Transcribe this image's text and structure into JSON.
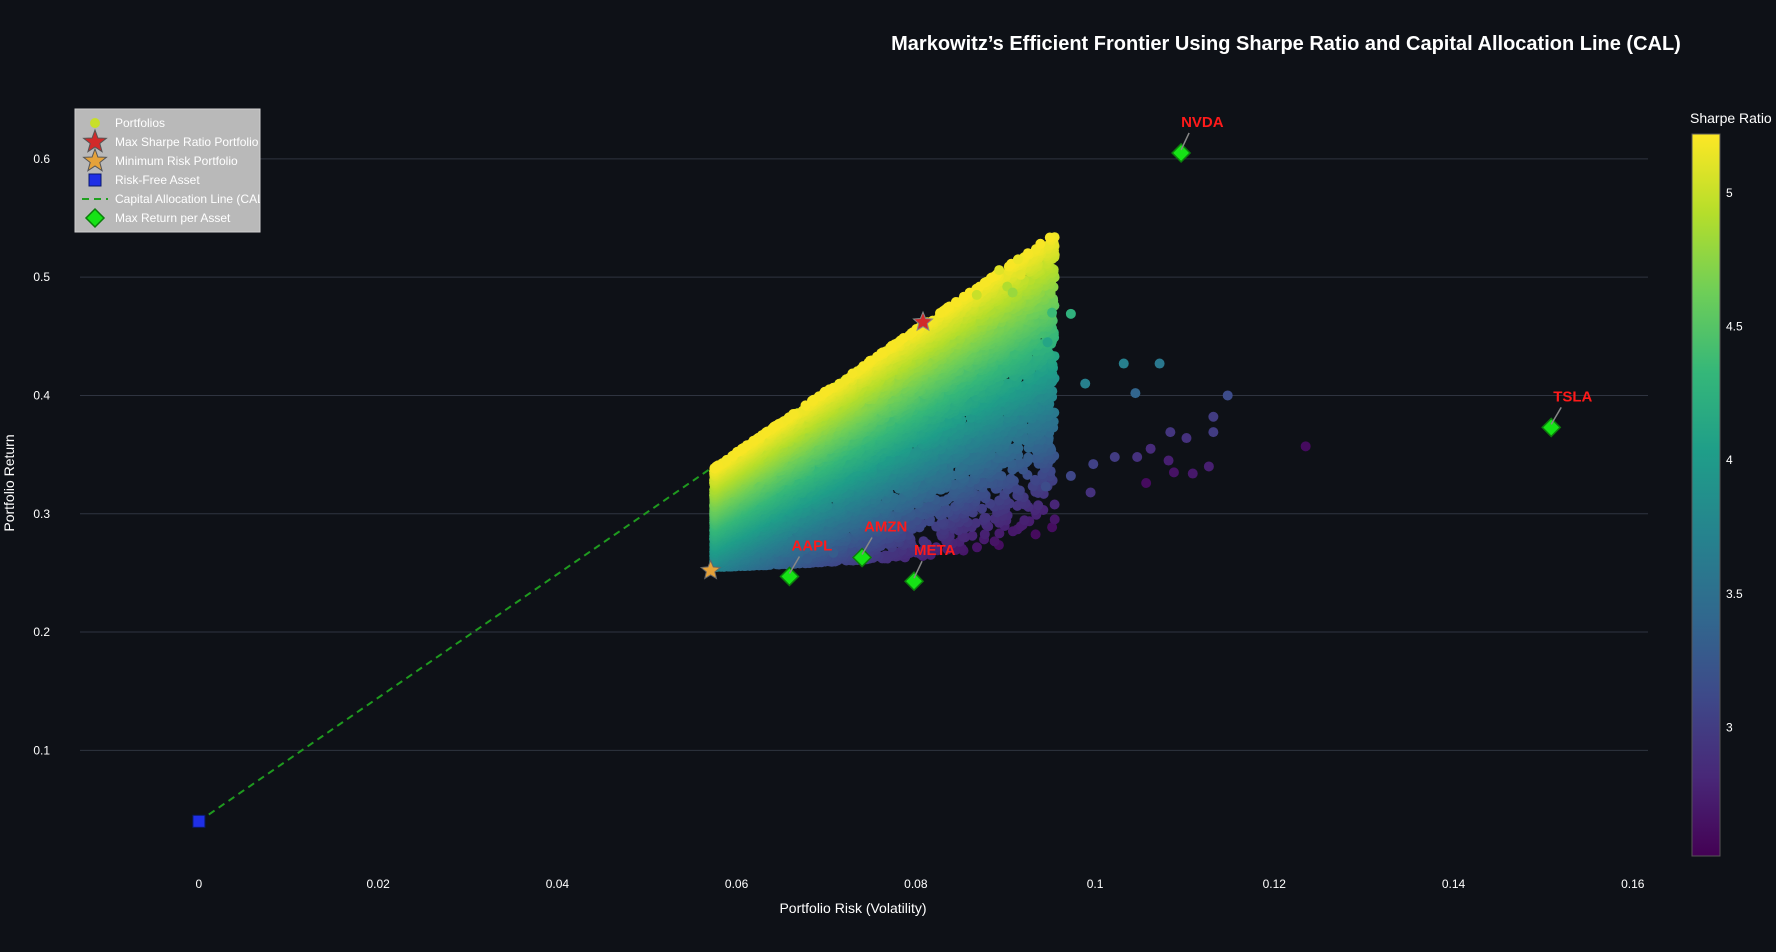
{
  "chart_data": {
    "type": "scatter",
    "title": "Markowitz’s Efficient Frontier Using Sharpe Ratio and Capital Allocation Line (CAL)",
    "xlabel": "Portfolio Risk (Volatility)",
    "ylabel": "Portfolio Return",
    "xlim": [
      -0.0155,
      0.1617
    ],
    "ylim": [
      0.009,
      0.654
    ],
    "x_ticks": [
      0,
      0.02,
      0.04,
      0.06,
      0.08,
      0.1,
      0.12,
      0.14,
      0.16
    ],
    "x_tick_labels": [
      "0",
      "0.02",
      "0.04",
      "0.06",
      "0.08",
      "0.1",
      "0.12",
      "0.14",
      "0.16"
    ],
    "y_ticks": [
      0.1,
      0.2,
      0.3,
      0.4,
      0.5,
      0.6
    ],
    "y_tick_labels": [
      "0.1",
      "0.2",
      "0.3",
      "0.4",
      "0.5",
      "0.6"
    ],
    "grid": "horizontal",
    "legend_position": "top-left",
    "legend": [
      {
        "label": "Portfolios",
        "symbol": "circle",
        "color": "#c8df2a"
      },
      {
        "label": "Max Sharpe Ratio Portfolio",
        "symbol": "star",
        "color": "#d12a2a"
      },
      {
        "label": "Minimum Risk Portfolio",
        "symbol": "star",
        "color": "#e5a23a"
      },
      {
        "label": "Risk-Free Asset",
        "symbol": "square",
        "color": "#1f2fe6"
      },
      {
        "label": "Capital Allocation Line (CAL)",
        "symbol": "dash",
        "color": "#1fa11f"
      },
      {
        "label": "Max Return per Asset",
        "symbol": "diamond",
        "color": "#16e316"
      }
    ],
    "colorbar": {
      "title": "Sharpe Ratio",
      "range": [
        2.52,
        5.22
      ],
      "ticks": [
        3,
        3.5,
        4,
        4.5,
        5
      ],
      "tick_labels": [
        "3",
        "3.5",
        "4",
        "4.5",
        "5"
      ],
      "colorscale": "Viridis"
    },
    "portfolio_cloud": {
      "count": 9000,
      "min_risk_vol": 0.0575,
      "min_risk_return": 0.255,
      "sharpe_range": [
        2.52,
        5.22
      ]
    },
    "portfolio_outliers": [
      {
        "x": 0.0914,
        "y": 0.515,
        "sharpe": 5.15
      },
      {
        "x": 0.0917,
        "y": 0.502,
        "sharpe": 5.1
      },
      {
        "x": 0.0893,
        "y": 0.506,
        "sharpe": 5.1
      },
      {
        "x": 0.0902,
        "y": 0.492,
        "sharpe": 4.9
      },
      {
        "x": 0.0908,
        "y": 0.487,
        "sharpe": 4.8
      },
      {
        "x": 0.0868,
        "y": 0.485,
        "sharpe": 5.0
      },
      {
        "x": 0.0952,
        "y": 0.47,
        "sharpe": 4.35
      },
      {
        "x": 0.0973,
        "y": 0.469,
        "sharpe": 4.25
      },
      {
        "x": 0.0947,
        "y": 0.445,
        "sharpe": 4.1
      },
      {
        "x": 0.1032,
        "y": 0.427,
        "sharpe": 3.7
      },
      {
        "x": 0.0989,
        "y": 0.41,
        "sharpe": 3.7
      },
      {
        "x": 0.1045,
        "y": 0.402,
        "sharpe": 3.4
      },
      {
        "x": 0.1072,
        "y": 0.427,
        "sharpe": 3.6
      },
      {
        "x": 0.1148,
        "y": 0.4,
        "sharpe": 3.15
      },
      {
        "x": 0.1132,
        "y": 0.382,
        "sharpe": 3.0
      },
      {
        "x": 0.1132,
        "y": 0.369,
        "sharpe": 3.0
      },
      {
        "x": 0.1084,
        "y": 0.369,
        "sharpe": 2.95
      },
      {
        "x": 0.1102,
        "y": 0.364,
        "sharpe": 2.9
      },
      {
        "x": 0.1062,
        "y": 0.355,
        "sharpe": 2.85
      },
      {
        "x": 0.1082,
        "y": 0.345,
        "sharpe": 2.75
      },
      {
        "x": 0.1109,
        "y": 0.334,
        "sharpe": 2.7
      },
      {
        "x": 0.1127,
        "y": 0.34,
        "sharpe": 2.75
      },
      {
        "x": 0.1088,
        "y": 0.335,
        "sharpe": 2.65
      },
      {
        "x": 0.1057,
        "y": 0.326,
        "sharpe": 2.6
      },
      {
        "x": 0.1235,
        "y": 0.357,
        "sharpe": 2.6
      },
      {
        "x": 0.0998,
        "y": 0.342,
        "sharpe": 3.05
      },
      {
        "x": 0.1022,
        "y": 0.348,
        "sharpe": 3.0
      },
      {
        "x": 0.0973,
        "y": 0.332,
        "sharpe": 3.1
      },
      {
        "x": 0.0995,
        "y": 0.318,
        "sharpe": 2.9
      },
      {
        "x": 0.1047,
        "y": 0.348,
        "sharpe": 2.9
      },
      {
        "x": 0.0945,
        "y": 0.323,
        "sharpe": 3.15
      },
      {
        "x": 0.0708,
        "y": 0.267,
        "sharpe": 3.3
      },
      {
        "x": 0.0679,
        "y": 0.262,
        "sharpe": 3.3
      }
    ],
    "max_sharpe_portfolio": {
      "x": 0.0808,
      "y": 0.462,
      "sharpe": 5.22
    },
    "min_risk_portfolio": {
      "x": 0.0571,
      "y": 0.252
    },
    "risk_free_asset": {
      "x": 0.0,
      "y": 0.04
    },
    "cal_line": {
      "x": [
        0.0,
        0.0808
      ],
      "y": [
        0.04,
        0.462
      ]
    },
    "assets": [
      {
        "name": "NVDA",
        "x": 0.1096,
        "y": 0.605,
        "label_dx": 0,
        "label_dy": -26
      },
      {
        "name": "AAPL",
        "x": 0.0659,
        "y": 0.247,
        "label_dx": 2,
        "label_dy": -26
      },
      {
        "name": "AMZN",
        "x": 0.074,
        "y": 0.263,
        "label_dx": 2,
        "label_dy": -26
      },
      {
        "name": "META",
        "x": 0.0798,
        "y": 0.243,
        "label_dx": 0,
        "label_dy": -26
      },
      {
        "name": "TSLA",
        "x": 0.1509,
        "y": 0.373,
        "label_dx": 2,
        "label_dy": -26
      }
    ]
  }
}
